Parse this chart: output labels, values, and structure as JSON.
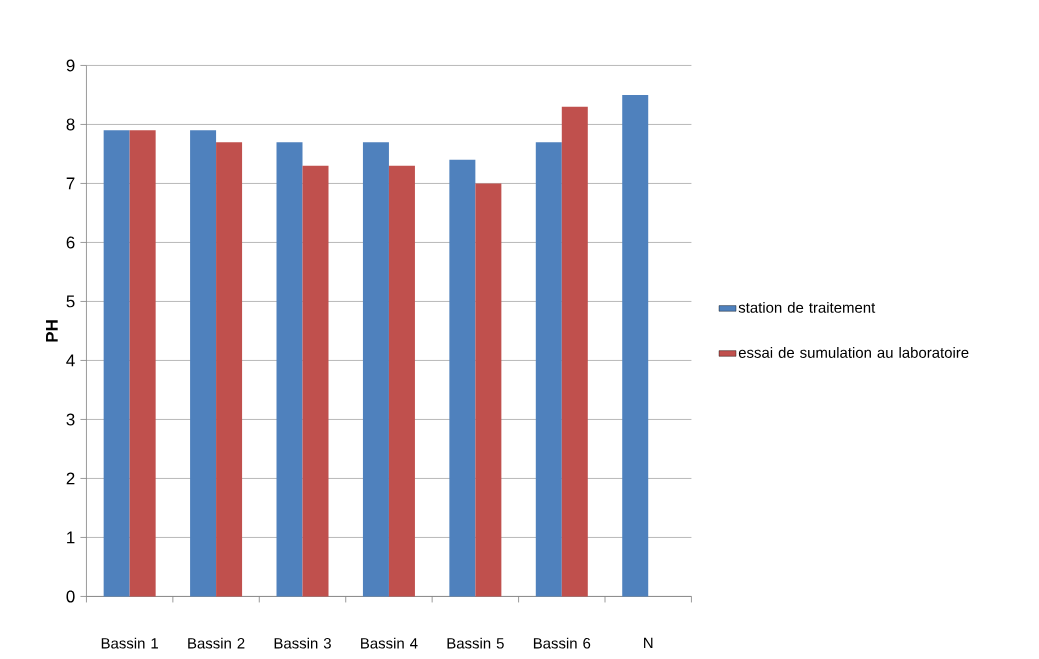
{
  "chart_data": {
    "type": "bar",
    "ylabel": "PH",
    "categories": [
      "Bassin 1",
      "Bassin 2",
      "Bassin 3",
      "Bassin 4",
      "Bassin 5",
      "Bassin 6",
      "N"
    ],
    "series": [
      {
        "name": "station de traitement",
        "color": "#4f81bd",
        "values": [
          7.9,
          7.9,
          7.7,
          7.7,
          7.4,
          7.7,
          8.5
        ]
      },
      {
        "name": "essai de sumulation au laboratoire",
        "color": "#c0504d",
        "values": [
          7.9,
          7.7,
          7.3,
          7.3,
          7.0,
          8.3,
          null
        ]
      }
    ],
    "ylim": [
      0,
      9
    ],
    "yticks": [
      0,
      1,
      2,
      3,
      4,
      5,
      6,
      7,
      8,
      9
    ],
    "grid": "y",
    "legend": "right"
  }
}
